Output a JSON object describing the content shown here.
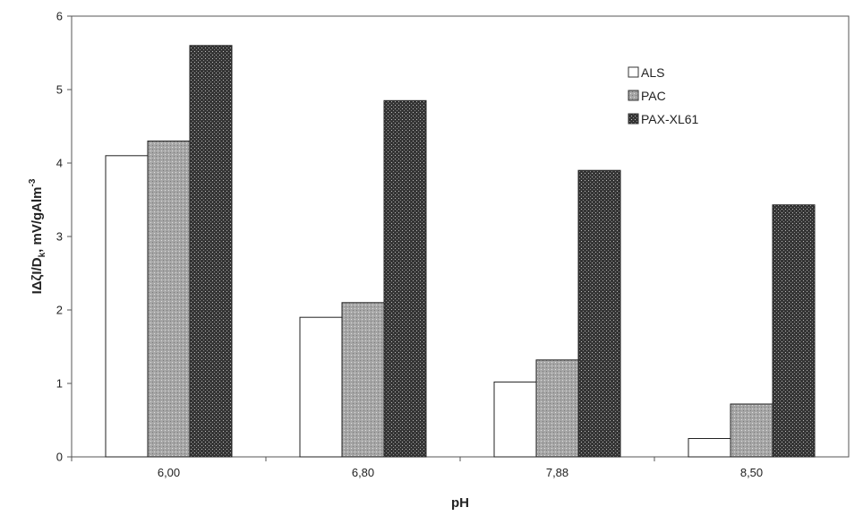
{
  "chart_data": {
    "type": "bar",
    "categories": [
      "6,00",
      "6,80",
      "7,88",
      "8,50"
    ],
    "series": [
      {
        "name": "ALS",
        "values": [
          4.1,
          1.9,
          1.02,
          0.25
        ],
        "color": "#ffffff"
      },
      {
        "name": "PAC",
        "values": [
          4.3,
          2.1,
          1.32,
          0.72
        ],
        "color": "#9a9a9a"
      },
      {
        "name": "PAX-XL61",
        "values": [
          5.6,
          4.85,
          3.9,
          3.43
        ],
        "color": "#3a3a3a"
      }
    ],
    "xlabel": "pH",
    "ylabel": {
      "main": "IΔζI/D",
      "sub": "k",
      "rest": ", mV/gAlm",
      "sup": "-3"
    },
    "ylim": [
      0,
      6
    ],
    "yticks": [
      "0",
      "1",
      "2",
      "3",
      "4",
      "5",
      "6"
    ],
    "grid": false,
    "legend_position": "top-right"
  }
}
